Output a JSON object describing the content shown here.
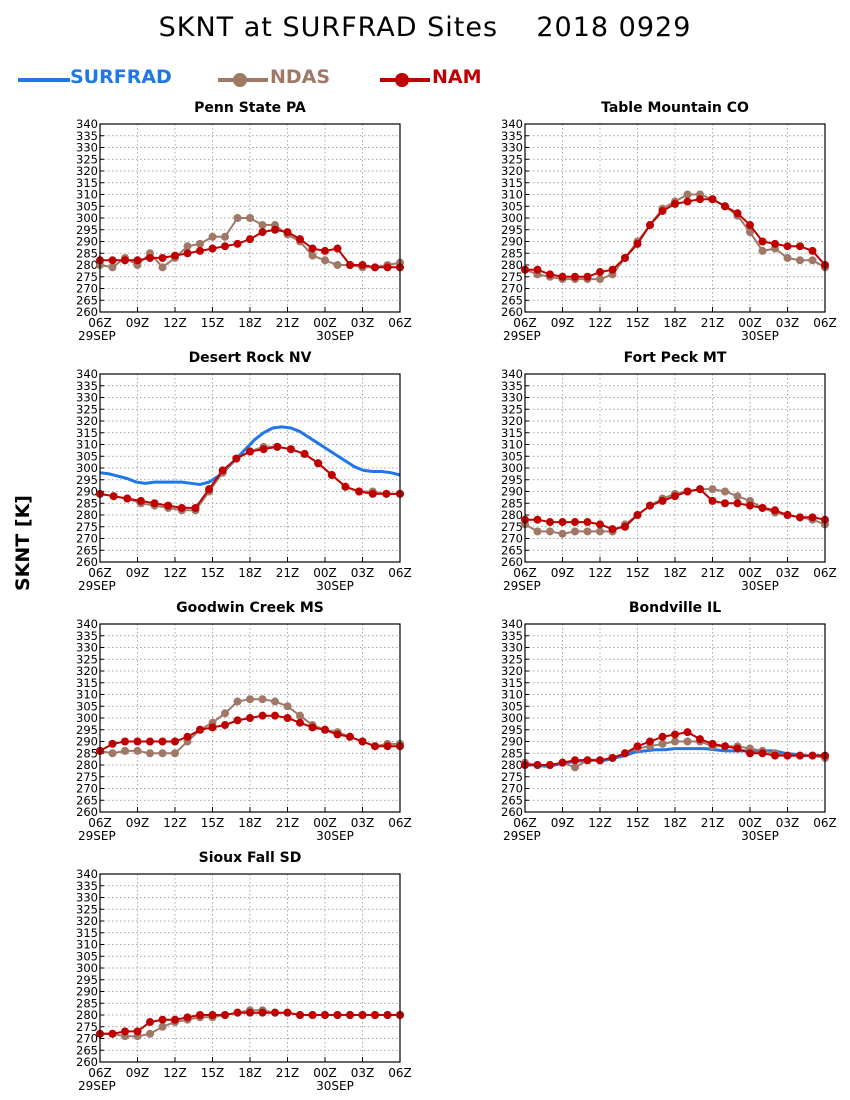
{
  "title": "SKNT at SURFRAD Sites    2018 0929",
  "ylabel": "SKNT [K]",
  "legend": [
    {
      "name": "SURFRAD",
      "color": "#1f77e8",
      "marker": false
    },
    {
      "name": "NDAS",
      "color": "#a07868",
      "marker": true
    },
    {
      "name": "NAM",
      "color": "#c00000",
      "marker": true
    }
  ],
  "chart_data": [
    {
      "type": "line",
      "title": "Penn State PA",
      "ylim": [
        260,
        340
      ],
      "yticks": [
        260,
        265,
        270,
        275,
        280,
        285,
        290,
        295,
        300,
        305,
        310,
        315,
        320,
        325,
        330,
        335,
        340
      ],
      "x_tick_labels": [
        "06Z",
        "09Z",
        "12Z",
        "15Z",
        "18Z",
        "21Z",
        "00Z",
        "03Z",
        "06Z"
      ],
      "date_labels": [
        "29SEP",
        "30SEP"
      ],
      "grid": true,
      "series": [
        {
          "name": "NDAS",
          "values": [
            280,
            279,
            283,
            280,
            285,
            279,
            283,
            288,
            289,
            292,
            292,
            300,
            300,
            297,
            297,
            293,
            290,
            284,
            282,
            280,
            280,
            279,
            279,
            280,
            281
          ]
        },
        {
          "name": "NAM",
          "values": [
            282,
            282,
            282,
            282,
            283,
            283,
            284,
            285,
            286,
            287,
            288,
            289,
            291,
            294,
            295,
            294,
            291,
            287,
            286,
            287,
            280,
            280,
            279,
            279,
            279
          ]
        }
      ]
    },
    {
      "type": "line",
      "title": "Table Mountain CO",
      "ylim": [
        260,
        340
      ],
      "yticks": [
        260,
        265,
        270,
        275,
        280,
        285,
        290,
        295,
        300,
        305,
        310,
        315,
        320,
        325,
        330,
        335,
        340
      ],
      "x_tick_labels": [
        "06Z",
        "09Z",
        "12Z",
        "15Z",
        "18Z",
        "21Z",
        "00Z",
        "03Z",
        "06Z"
      ],
      "date_labels": [
        "29SEP",
        "30SEP"
      ],
      "grid": true,
      "series": [
        {
          "name": "NDAS",
          "values": [
            278,
            276,
            275,
            274,
            274,
            274,
            274,
            276,
            283,
            290,
            297,
            304,
            307,
            310,
            310,
            308,
            305,
            301,
            294,
            286,
            287,
            283,
            282,
            282,
            279
          ]
        },
        {
          "name": "NAM",
          "values": [
            278,
            278,
            276,
            275,
            275,
            275,
            277,
            278,
            283,
            289,
            297,
            303,
            306,
            307,
            308,
            308,
            305,
            302,
            297,
            290,
            289,
            288,
            288,
            286,
            280
          ]
        }
      ]
    },
    {
      "type": "line",
      "title": "Desert Rock NV",
      "ylim": [
        260,
        340
      ],
      "yticks": [
        260,
        265,
        270,
        275,
        280,
        285,
        290,
        295,
        300,
        305,
        310,
        315,
        320,
        325,
        330,
        335,
        340
      ],
      "x_tick_labels": [
        "06Z",
        "09Z",
        "12Z",
        "15Z",
        "18Z",
        "21Z",
        "00Z",
        "03Z",
        "06Z"
      ],
      "date_labels": [
        "29SEP",
        "30SEP"
      ],
      "grid": true,
      "series": [
        {
          "name": "SURFRAD",
          "values": [
            298,
            297.5,
            296.5,
            295.5,
            294,
            293.5,
            294,
            294,
            294,
            294,
            293.5,
            293,
            294,
            296.5,
            300,
            304,
            308,
            312,
            315,
            317,
            317.5,
            317,
            315.5,
            313,
            310.5,
            308,
            305.5,
            303,
            300.5,
            299,
            298.5,
            298.5,
            298,
            297
          ]
        },
        {
          "name": "NDAS",
          "values": [
            289,
            288,
            287,
            285,
            284,
            283,
            282,
            282,
            290,
            298,
            304,
            307,
            309,
            309,
            308,
            306,
            302,
            297,
            292,
            290,
            290,
            289,
            289
          ]
        },
        {
          "name": "NAM",
          "values": [
            289,
            288,
            287,
            286,
            285,
            284,
            283,
            283,
            291,
            299,
            304,
            307,
            308,
            309,
            308,
            306,
            302,
            297,
            292,
            290,
            289,
            289,
            289
          ]
        }
      ]
    },
    {
      "type": "line",
      "title": "Fort Peck MT",
      "ylim": [
        260,
        340
      ],
      "yticks": [
        260,
        265,
        270,
        275,
        280,
        285,
        290,
        295,
        300,
        305,
        310,
        315,
        320,
        325,
        330,
        335,
        340
      ],
      "x_tick_labels": [
        "06Z",
        "09Z",
        "12Z",
        "15Z",
        "18Z",
        "21Z",
        "00Z",
        "03Z",
        "06Z"
      ],
      "date_labels": [
        "29SEP",
        "30SEP"
      ],
      "grid": true,
      "series": [
        {
          "name": "NDAS",
          "values": [
            276,
            273,
            273,
            272,
            273,
            273,
            273,
            273,
            276,
            280,
            284,
            287,
            289,
            290,
            291,
            291,
            290,
            288,
            286,
            283,
            281,
            280,
            279,
            278,
            276
          ]
        },
        {
          "name": "NAM",
          "values": [
            278,
            278,
            277,
            277,
            277,
            277,
            276,
            274,
            275,
            280,
            284,
            286,
            288,
            290,
            291,
            286,
            285,
            285,
            284,
            283,
            282,
            280,
            279,
            279,
            278
          ]
        }
      ]
    },
    {
      "type": "line",
      "title": "Goodwin Creek MS",
      "ylim": [
        260,
        340
      ],
      "yticks": [
        260,
        265,
        270,
        275,
        280,
        285,
        290,
        295,
        300,
        305,
        310,
        315,
        320,
        325,
        330,
        335,
        340
      ],
      "x_tick_labels": [
        "06Z",
        "09Z",
        "12Z",
        "15Z",
        "18Z",
        "21Z",
        "00Z",
        "03Z",
        "06Z"
      ],
      "date_labels": [
        "29SEP",
        "30SEP"
      ],
      "grid": true,
      "series": [
        {
          "name": "NDAS",
          "values": [
            286,
            285,
            286,
            286,
            285,
            285,
            285,
            290,
            295,
            298,
            302,
            307,
            308,
            308,
            307,
            305,
            301,
            297,
            295,
            294,
            292,
            290,
            288,
            289,
            289
          ]
        },
        {
          "name": "NAM",
          "values": [
            286,
            289,
            290,
            290,
            290,
            290,
            290,
            292,
            295,
            296,
            297,
            299,
            300,
            301,
            301,
            300,
            298,
            296,
            295,
            293,
            292,
            290,
            288,
            288,
            288
          ]
        }
      ]
    },
    {
      "type": "line",
      "title": "Bondville IL",
      "ylim": [
        260,
        340
      ],
      "yticks": [
        260,
        265,
        270,
        275,
        280,
        285,
        290,
        295,
        300,
        305,
        310,
        315,
        320,
        325,
        330,
        335,
        340
      ],
      "x_tick_labels": [
        "06Z",
        "09Z",
        "12Z",
        "15Z",
        "18Z",
        "21Z",
        "00Z",
        "03Z",
        "06Z"
      ],
      "date_labels": [
        "29SEP",
        "30SEP"
      ],
      "grid": true,
      "series": [
        {
          "name": "SURFRAD",
          "values": [
            280,
            280,
            279.5,
            280,
            281,
            281.5,
            282,
            282,
            282,
            283,
            284,
            285.5,
            286,
            286.5,
            286.5,
            287,
            287,
            287,
            287,
            286.5,
            286,
            286,
            286,
            286,
            286,
            286,
            285,
            284.5,
            284,
            284,
            284
          ]
        },
        {
          "name": "NDAS",
          "values": [
            281,
            280,
            280,
            281,
            279,
            282,
            282,
            283,
            285,
            287,
            288,
            289,
            290,
            290,
            290,
            288,
            288,
            288,
            287,
            286,
            285,
            284,
            284,
            284,
            283
          ]
        },
        {
          "name": "NAM",
          "values": [
            280,
            280,
            280,
            281,
            282,
            282,
            282,
            283,
            285,
            288,
            290,
            292,
            293,
            294,
            291,
            289,
            288,
            287,
            285,
            285,
            284,
            284,
            284,
            284,
            284
          ]
        }
      ]
    },
    {
      "type": "line",
      "title": "Sioux Fall SD",
      "ylim": [
        260,
        340
      ],
      "yticks": [
        260,
        265,
        270,
        275,
        280,
        285,
        290,
        295,
        300,
        305,
        310,
        315,
        320,
        325,
        330,
        335,
        340
      ],
      "x_tick_labels": [
        "06Z",
        "09Z",
        "12Z",
        "15Z",
        "18Z",
        "21Z",
        "00Z",
        "03Z",
        "06Z"
      ],
      "date_labels": [
        "29SEP",
        "30SEP"
      ],
      "grid": true,
      "series": [
        {
          "name": "NDAS",
          "values": [
            272,
            272,
            271,
            271,
            272,
            275,
            277,
            278,
            279,
            279,
            280,
            281,
            282,
            282,
            281,
            281,
            280,
            280,
            280,
            280,
            280,
            280,
            280,
            280,
            280
          ]
        },
        {
          "name": "NAM",
          "values": [
            272,
            272,
            273,
            273,
            277,
            278,
            278,
            279,
            280,
            280,
            280,
            281,
            281,
            281,
            281,
            281,
            280,
            280,
            280,
            280,
            280,
            280,
            280,
            280,
            280
          ]
        }
      ]
    }
  ]
}
